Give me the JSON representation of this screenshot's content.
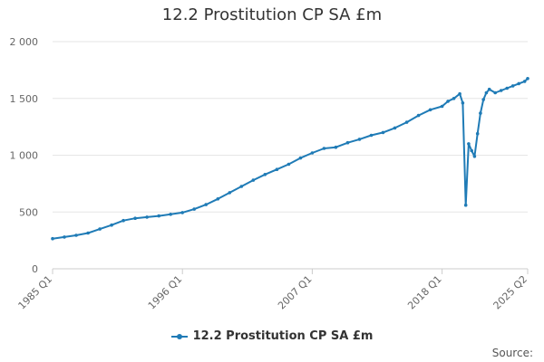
{
  "chart_data": {
    "type": "line",
    "title": "12.2 Prostitution CP SA £m",
    "xlabel": "",
    "ylabel": "",
    "ylim": [
      0,
      2000
    ],
    "yticks": [
      0,
      500,
      1000,
      1500,
      2000
    ],
    "ytick_labels": [
      "0",
      "500",
      "1 000",
      "1 500",
      "2 000"
    ],
    "xticks": [
      "1985 Q1",
      "1996 Q1",
      "2007 Q1",
      "2018 Q1",
      "2025 Q2"
    ],
    "grid": "horizontal",
    "legend_position": "bottom",
    "color": "#1f7bb6",
    "series": [
      {
        "name": "12.2 Prostitution CP SA £m",
        "x": [
          "1985 Q1",
          "1986 Q1",
          "1987 Q1",
          "1988 Q1",
          "1989 Q1",
          "1990 Q1",
          "1991 Q1",
          "1992 Q1",
          "1993 Q1",
          "1994 Q1",
          "1995 Q1",
          "1996 Q1",
          "1997 Q1",
          "1998 Q1",
          "1999 Q1",
          "2000 Q1",
          "2001 Q1",
          "2002 Q1",
          "2003 Q1",
          "2004 Q1",
          "2005 Q1",
          "2006 Q1",
          "2007 Q1",
          "2008 Q1",
          "2009 Q1",
          "2010 Q1",
          "2011 Q1",
          "2012 Q1",
          "2013 Q1",
          "2014 Q1",
          "2015 Q1",
          "2016 Q1",
          "2017 Q1",
          "2018 Q1",
          "2018 Q3",
          "2019 Q1",
          "2019 Q3",
          "2019 Q4",
          "2020 Q1",
          "2020 Q2",
          "2020 Q3",
          "2020 Q4",
          "2021 Q1",
          "2021 Q2",
          "2021 Q3",
          "2021 Q4",
          "2022 Q1",
          "2022 Q3",
          "2023 Q1",
          "2023 Q3",
          "2024 Q1",
          "2024 Q3",
          "2025 Q1",
          "2025 Q2"
        ],
        "values": [
          265,
          280,
          295,
          315,
          350,
          385,
          425,
          445,
          455,
          465,
          480,
          495,
          525,
          565,
          615,
          670,
          725,
          780,
          830,
          875,
          920,
          975,
          1020,
          1060,
          1070,
          1110,
          1140,
          1175,
          1200,
          1240,
          1290,
          1350,
          1400,
          1430,
          1475,
          1500,
          1540,
          1460,
          560,
          1100,
          1040,
          990,
          1190,
          1370,
          1490,
          1550,
          1580,
          1550,
          1570,
          1590,
          1610,
          1630,
          1650,
          1675
        ]
      }
    ]
  },
  "source_label": "Source:"
}
